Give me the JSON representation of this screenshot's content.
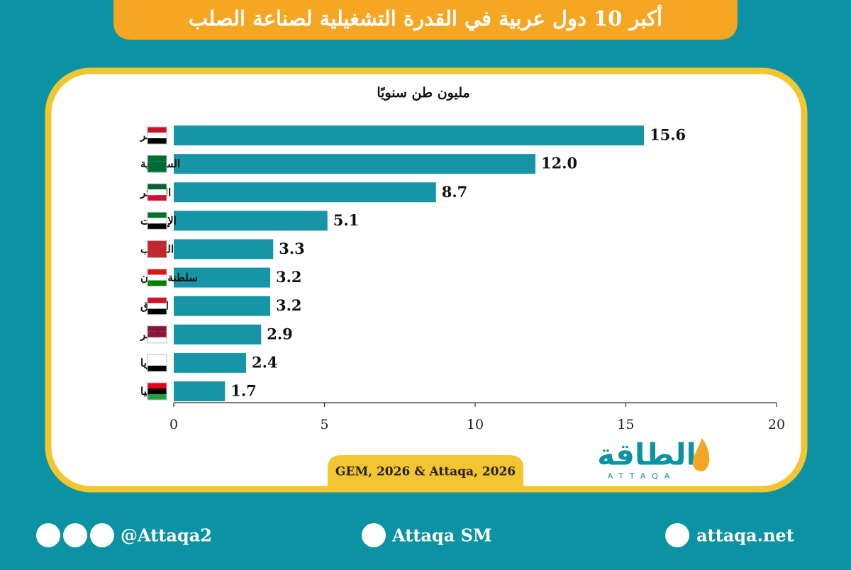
{
  "header": {
    "title": "أكبر 10 دول عربية في القدرة التشغيلية لصناعة الصلب"
  },
  "chart_data": {
    "type": "bar",
    "orientation": "horizontal",
    "subtitle": "مليون طن سنويًا",
    "categories": [
      "مصر",
      "السعودية",
      "الجزائر",
      "الإمارات",
      "المغرب",
      "سلطنة عمان",
      "العراق",
      "قطر",
      "سوريا",
      "ليبيا"
    ],
    "values": [
      15.6,
      12.0,
      8.7,
      5.1,
      3.3,
      3.2,
      3.2,
      2.9,
      2.4,
      1.7
    ],
    "value_labels": [
      "15.6",
      "12.0",
      "8.7",
      "5.1",
      "3.3",
      "3.2",
      "3.2",
      "2.9",
      "2.4",
      "1.7"
    ],
    "color": "#1595a5",
    "xlim": [
      0,
      20
    ],
    "xticks": [
      0,
      5,
      10,
      15,
      20
    ]
  },
  "source": "GEM, 2026 & Attaqa, 2026",
  "logo": {
    "text": "الطاقة",
    "latin": "ATTAQA"
  },
  "footer": {
    "social": "@Attaqa2",
    "youtube": "Attaqa SM",
    "website": "attaqa.net"
  }
}
